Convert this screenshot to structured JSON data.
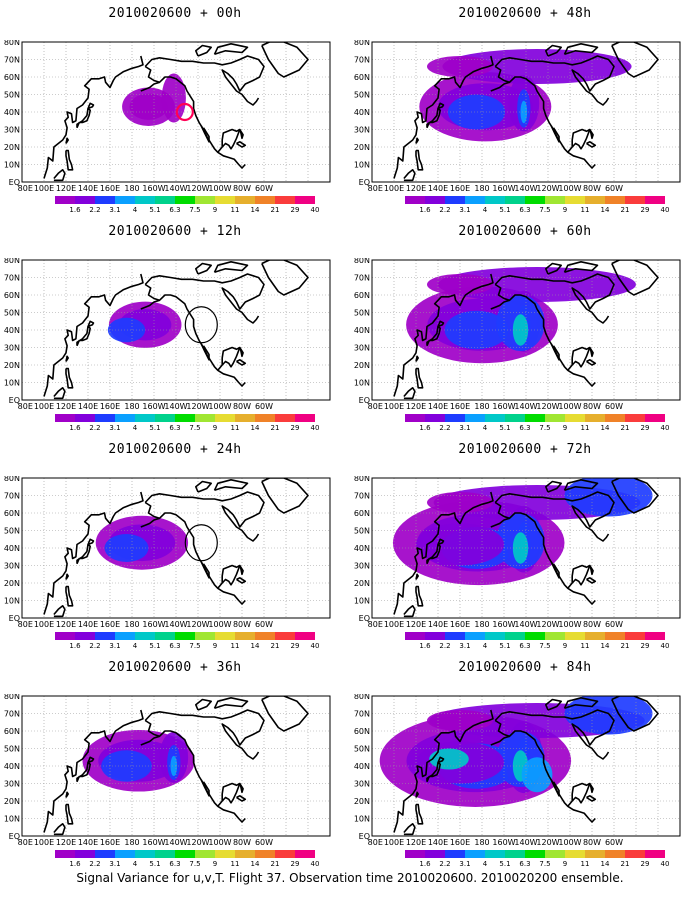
{
  "caption": "Signal Variance for u,v,T. Flight 37. Observation time 2010020600. 2010020200 ensemble.",
  "colorbar": {
    "colors": [
      "#a000c8",
      "#8200dc",
      "#1e3cff",
      "#0aa0ff",
      "#00c8c8",
      "#00d28c",
      "#00dc00",
      "#a0e632",
      "#e6dc32",
      "#e6af2d",
      "#f08228",
      "#fa3c3c",
      "#f00082"
    ],
    "labels": [
      "1.6",
      "2.2",
      "3.1",
      "4",
      "5.1",
      "6.3",
      "7.5",
      "9",
      "11",
      "14",
      "21",
      "29",
      "40"
    ]
  },
  "axes": {
    "lon_labels": [
      "80E",
      "100E",
      "120E",
      "140E",
      "160E",
      "180",
      "160W",
      "140W",
      "120W",
      "100W",
      "80W",
      "60W"
    ],
    "lat_labels": [
      "EQ",
      "10N",
      "20N",
      "30N",
      "40N",
      "50N",
      "60N",
      "70N",
      "80N"
    ]
  },
  "panels": [
    {
      "title": "2010020600 + 00h",
      "level": 0,
      "circle": "red"
    },
    {
      "title": "2010020600 + 12h",
      "level": 1,
      "circle": "black"
    },
    {
      "title": "2010020600 + 24h",
      "level": 2,
      "circle": "black"
    },
    {
      "title": "2010020600 + 36h",
      "level": 3,
      "circle": ""
    },
    {
      "title": "2010020600 + 48h",
      "level": 4,
      "circle": ""
    },
    {
      "title": "2010020600 + 60h",
      "level": 5,
      "circle": ""
    },
    {
      "title": "2010020600 + 72h",
      "level": 6,
      "circle": ""
    },
    {
      "title": "2010020600 + 84h",
      "level": 7,
      "circle": ""
    }
  ]
}
